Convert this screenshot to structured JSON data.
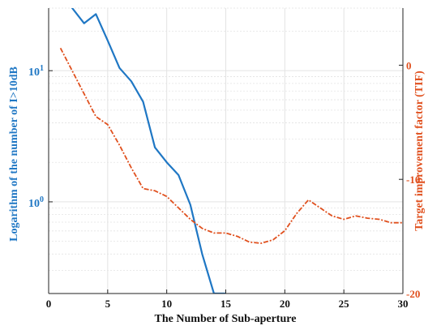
{
  "chart_data": {
    "type": "line",
    "title": "",
    "xlabel": "The Number of Sub-aperture",
    "ylabel_left": "Logarithm of the number of I>10dB",
    "ylabel_right": "Target improvement factor (TIF)",
    "xlim": [
      0,
      30
    ],
    "ylim_left": [
      0.2,
      30
    ],
    "ylim_right": [
      -20,
      5
    ],
    "yscale_left": "log",
    "grid": true,
    "x_ticks": [
      "0",
      "5",
      "10",
      "15",
      "20",
      "25",
      "30"
    ],
    "left_ticks": [
      {
        "value": 1,
        "base": "10",
        "exp": "0"
      },
      {
        "value": 10,
        "base": "10",
        "exp": "1"
      }
    ],
    "right_ticks": [
      "0",
      "-10",
      "-20"
    ],
    "colors": {
      "left_series": "#1f77c4",
      "right_series": "#e0501e",
      "grid": "#e3e3e3",
      "axis": "#222222"
    },
    "series": [
      {
        "axis": "left",
        "style": "solid",
        "color": "#1f77c4",
        "x": [
          1,
          2,
          3,
          4,
          5,
          6,
          7,
          8,
          9,
          10,
          11,
          12,
          13,
          14,
          15
        ],
        "y": [
          40,
          30,
          23,
          27,
          17,
          10.5,
          8.3,
          5.8,
          2.6,
          2.0,
          1.6,
          0.95,
          0.4,
          0.2,
          0.2
        ]
      },
      {
        "axis": "right",
        "style": "dash-dot",
        "color": "#e0501e",
        "x": [
          1,
          2,
          3,
          4,
          5,
          6,
          7,
          8,
          9,
          10,
          11,
          12,
          13,
          14,
          15,
          16,
          17,
          18,
          19,
          20,
          21,
          22,
          23,
          24,
          25,
          26,
          27,
          28,
          29,
          30
        ],
        "y": [
          1.5,
          -0.5,
          -2.5,
          -4.5,
          -5.2,
          -7.0,
          -9.0,
          -10.8,
          -11.0,
          -11.5,
          -12.5,
          -13.5,
          -14.3,
          -14.7,
          -14.7,
          -15.0,
          -15.5,
          -15.6,
          -15.3,
          -14.5,
          -13.0,
          -11.8,
          -12.5,
          -13.2,
          -13.5,
          -13.2,
          -13.4,
          -13.5,
          -13.8,
          -13.8
        ]
      }
    ]
  }
}
